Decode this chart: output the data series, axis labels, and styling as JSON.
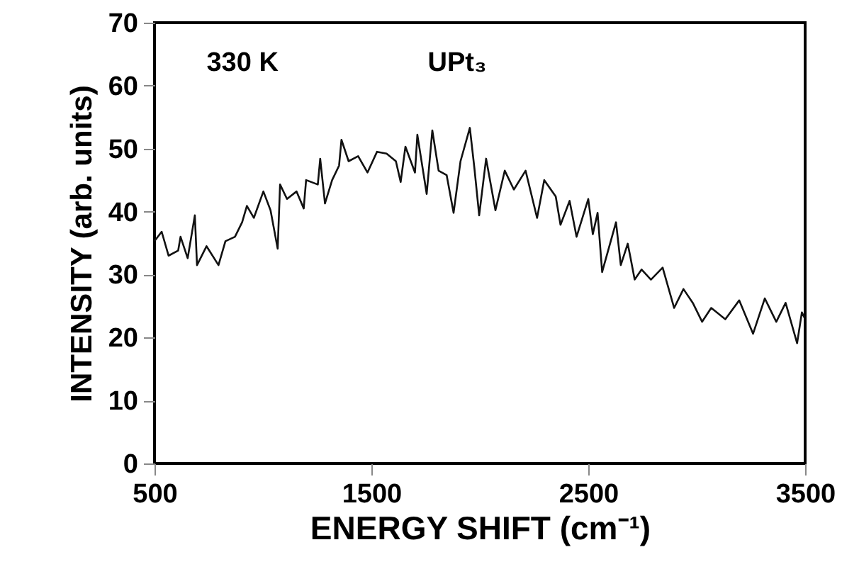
{
  "chart_data": {
    "type": "line",
    "xlabel": "ENERGY SHIFT (cm⁻¹)",
    "ylabel": "INTENSITY (arb. units)",
    "annotations": [
      "330 K",
      "UPt₃"
    ],
    "xlim": [
      500,
      3500
    ],
    "xticks": [
      500,
      1500,
      2500,
      3500
    ],
    "ylim": [
      0,
      70
    ],
    "yticks": [
      0,
      10,
      20,
      30,
      40,
      50,
      60,
      70
    ],
    "grid": false,
    "marker": "none",
    "line_style": "solid",
    "series": [
      {
        "color": "#111111",
        "x": [
          500,
          533,
          565,
          609,
          620,
          653,
          686,
          696,
          740,
          795,
          827,
          871,
          904,
          926,
          958,
          1002,
          1035,
          1068,
          1079,
          1111,
          1155,
          1188,
          1199,
          1253,
          1264,
          1286,
          1319,
          1351,
          1362,
          1395,
          1439,
          1482,
          1526,
          1570,
          1613,
          1635,
          1657,
          1701,
          1712,
          1755,
          1781,
          1810,
          1847,
          1879,
          1911,
          1954,
          1975,
          1997,
          2029,
          2072,
          2115,
          2157,
          2211,
          2264,
          2297,
          2350,
          2372,
          2414,
          2446,
          2500,
          2521,
          2543,
          2564,
          2628,
          2650,
          2682,
          2693,
          2714,
          2746,
          2789,
          2843,
          2896,
          2939,
          2982,
          3025,
          3067,
          3132,
          3196,
          3260,
          3314,
          3367,
          3410,
          3463,
          3485,
          3496
        ],
        "values": [
          35.3,
          36.8,
          33,
          33.8,
          36,
          32.6,
          39.4,
          31.5,
          34.5,
          31.5,
          35.3,
          36,
          38.3,
          40.9,
          39,
          43.2,
          40.2,
          34.1,
          44.3,
          42,
          43.2,
          40.5,
          45,
          44.3,
          48.4,
          41.3,
          45,
          47.3,
          51.4,
          48,
          48.8,
          46.2,
          49.5,
          49.2,
          48,
          44.7,
          50.3,
          46.2,
          52.2,
          42.8,
          52.9,
          46.5,
          45.8,
          39.8,
          48,
          53.3,
          46.9,
          39.4,
          48.4,
          40.2,
          46.5,
          43.5,
          46.5,
          39,
          45,
          42.4,
          37.9,
          41.7,
          36,
          42,
          36.4,
          39.8,
          30.4,
          38.3,
          31.5,
          34.9,
          33,
          29.2,
          30.8,
          29.2,
          31.1,
          24.7,
          27.7,
          25.5,
          22.5,
          24.7,
          22.9,
          25.9,
          20.6,
          26.2,
          22.5,
          25.5,
          19.1,
          24,
          23.2
        ]
      }
    ]
  }
}
